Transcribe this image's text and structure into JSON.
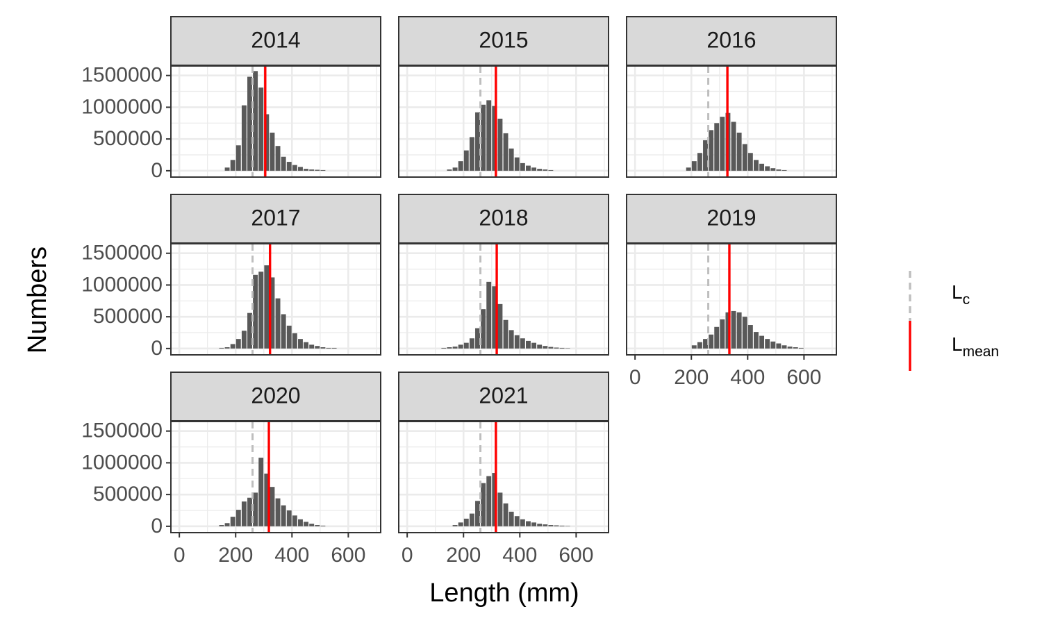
{
  "chart_data": {
    "type": "bar",
    "xlabel": "Length (mm)",
    "ylabel": "Numbers",
    "xlim": [
      -30,
      715
    ],
    "ylim": [
      -100000,
      1650000
    ],
    "x_ticks": [
      0,
      200,
      400,
      600
    ],
    "x_minor_ticks": [
      100,
      300,
      500,
      700
    ],
    "y_ticks": [
      0,
      500000,
      1000000,
      1500000
    ],
    "y_tick_labels": [
      "0",
      "500000",
      "1000000",
      "1500000"
    ],
    "y_minor_ticks": [
      250000,
      750000,
      1250000
    ],
    "bin_width": 20,
    "grid": true,
    "legend": {
      "position": "right",
      "items": [
        {
          "main": "L",
          "sub": "c",
          "color": "#bebebe",
          "style": "dashed"
        },
        {
          "main": "L",
          "sub": "mean",
          "color": "#ff0000",
          "style": "solid"
        }
      ]
    },
    "bar_color": "#595959",
    "strip_color": "#d9d9d9",
    "panels": [
      {
        "title": "2014",
        "Lc": 260,
        "Lmean": 305,
        "x": [
          170,
          190,
          210,
          230,
          250,
          270,
          290,
          310,
          330,
          350,
          370,
          390,
          410,
          430,
          450,
          470,
          490,
          510
        ],
        "values": [
          50000,
          170000,
          400000,
          1030000,
          1480000,
          1570000,
          1310000,
          890000,
          600000,
          390000,
          220000,
          140000,
          90000,
          60000,
          30000,
          20000,
          15000,
          10000
        ]
      },
      {
        "title": "2015",
        "Lc": 260,
        "Lmean": 315,
        "x": [
          150,
          170,
          190,
          210,
          230,
          250,
          270,
          290,
          310,
          330,
          350,
          370,
          390,
          410,
          430,
          450,
          470,
          490,
          510
        ],
        "values": [
          20000,
          50000,
          150000,
          320000,
          530000,
          920000,
          1040000,
          1110000,
          1020000,
          820000,
          590000,
          350000,
          210000,
          120000,
          80000,
          50000,
          30000,
          20000,
          10000
        ]
      },
      {
        "title": "2016",
        "Lc": 260,
        "Lmean": 328,
        "x": [
          190,
          210,
          230,
          250,
          270,
          290,
          310,
          330,
          350,
          370,
          390,
          410,
          430,
          450,
          470,
          490,
          510,
          530
        ],
        "values": [
          50000,
          150000,
          280000,
          480000,
          640000,
          750000,
          850000,
          910000,
          770000,
          600000,
          420000,
          280000,
          170000,
          110000,
          70000,
          40000,
          20000,
          10000
        ]
      },
      {
        "title": "2017",
        "Lc": 260,
        "Lmean": 322,
        "x": [
          150,
          170,
          190,
          210,
          230,
          250,
          270,
          290,
          310,
          330,
          350,
          370,
          390,
          410,
          430,
          450,
          470,
          490,
          510,
          530,
          550
        ],
        "values": [
          10000,
          20000,
          70000,
          150000,
          280000,
          560000,
          1160000,
          1210000,
          1310000,
          1120000,
          790000,
          540000,
          360000,
          240000,
          150000,
          100000,
          60000,
          40000,
          20000,
          10000,
          10000
        ]
      },
      {
        "title": "2018",
        "Lc": 260,
        "Lmean": 318,
        "x": [
          130,
          150,
          170,
          190,
          210,
          230,
          250,
          270,
          290,
          310,
          330,
          350,
          370,
          390,
          410,
          430,
          450,
          470,
          490,
          510,
          530,
          550,
          570
        ],
        "values": [
          10000,
          20000,
          30000,
          60000,
          90000,
          160000,
          320000,
          620000,
          1050000,
          980000,
          700000,
          450000,
          290000,
          210000,
          160000,
          120000,
          90000,
          60000,
          40000,
          25000,
          15000,
          10000,
          5000
        ]
      },
      {
        "title": "2019",
        "Lc": 260,
        "Lmean": 335,
        "x": [
          210,
          230,
          250,
          270,
          290,
          310,
          330,
          350,
          370,
          390,
          410,
          430,
          450,
          470,
          490,
          510,
          530,
          550,
          570,
          590
        ],
        "values": [
          50000,
          100000,
          150000,
          220000,
          340000,
          460000,
          570000,
          590000,
          570000,
          500000,
          370000,
          260000,
          200000,
          150000,
          110000,
          80000,
          50000,
          30000,
          20000,
          10000
        ]
      },
      {
        "title": "2020",
        "Lc": 260,
        "Lmean": 318,
        "x": [
          150,
          170,
          190,
          210,
          230,
          250,
          270,
          290,
          310,
          330,
          350,
          370,
          390,
          410,
          430,
          450,
          470,
          490,
          510
        ],
        "values": [
          20000,
          50000,
          150000,
          260000,
          390000,
          450000,
          530000,
          1080000,
          830000,
          620000,
          440000,
          330000,
          250000,
          170000,
          110000,
          70000,
          40000,
          20000,
          10000
        ]
      },
      {
        "title": "2021",
        "Lc": 260,
        "Lmean": 315,
        "x": [
          170,
          190,
          210,
          230,
          250,
          270,
          290,
          310,
          330,
          350,
          370,
          390,
          410,
          430,
          450,
          470,
          490,
          510,
          530,
          550,
          570
        ],
        "values": [
          20000,
          60000,
          120000,
          200000,
          400000,
          680000,
          790000,
          840000,
          530000,
          360000,
          230000,
          160000,
          110000,
          80000,
          60000,
          40000,
          30000,
          20000,
          15000,
          10000,
          5000
        ]
      }
    ]
  }
}
